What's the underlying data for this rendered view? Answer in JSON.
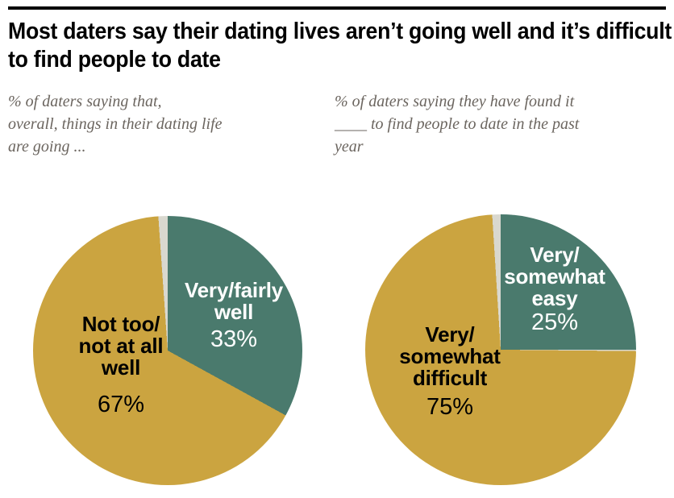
{
  "page": {
    "title": "Most daters say their dating lives aren’t going well and it’s difficult to find people to date"
  },
  "colors": {
    "gold": "#cba440",
    "teal": "#4a7a6d",
    "gap_gray": "#d9d8cf",
    "title_black": "#000000",
    "subtitle_gray": "#6b655f"
  },
  "chart_data": [
    {
      "type": "pie",
      "subtitle": "% of daters saying that,\noverall, things in their dating life\nare going ...",
      "legend_position": "none",
      "slices": [
        {
          "name": "Very/fairly well",
          "value": 33,
          "pct_label": "33%",
          "label_lines": "Very/fairly\nwell",
          "color": "#4a7a6d",
          "text_color": "#ffffff"
        },
        {
          "name": "Not too/not at all well",
          "value": 67,
          "pct_label": "67%",
          "label_lines": "Not too/\nnot at all\nwell",
          "color": "#cba440",
          "text_color": "#000000"
        }
      ],
      "render": {
        "start_deg": 0,
        "gap_deg": 4,
        "divider_deg": 0
      }
    },
    {
      "type": "pie",
      "subtitle": "% of daters saying they have found it\n____ to find people to date in the past\nyear",
      "legend_position": "none",
      "slices": [
        {
          "name": "Very/somewhat easy",
          "value": 25,
          "pct_label": "25%",
          "label_lines": "Very/\nsomewhat\neasy",
          "color": "#4a7a6d",
          "text_color": "#ffffff"
        },
        {
          "name": "Very/somewhat difficult",
          "value": 75,
          "pct_label": "75%",
          "label_lines": "Very/\nsomewhat\ndifficult",
          "color": "#cba440",
          "text_color": "#000000"
        }
      ],
      "render": {
        "start_deg": 0,
        "gap_deg": 3.6,
        "divider_deg": 0.6
      }
    }
  ]
}
